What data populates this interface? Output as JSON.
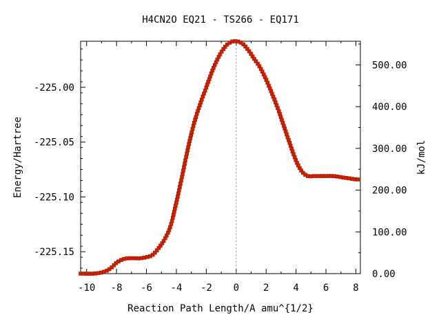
{
  "chart_data": {
    "type": "scatter",
    "title": "H4CN2O   EQ21 - TS266 - EQ171",
    "xlabel": "Reaction Path Length/A amu^{1/2}",
    "ylabel": "Energy/Hartree",
    "y2label": "kJ/mol",
    "xlim": [
      -10.4,
      8.3
    ],
    "ylim": [
      -225.17,
      -224.958
    ],
    "y2lim": [
      0,
      556.6
    ],
    "grid": false,
    "legend": "none",
    "xticks": [
      -10,
      -8,
      -6,
      -4,
      -2,
      0,
      2,
      4,
      6,
      8
    ],
    "xtick_labels": [
      "-10",
      "-8",
      "-6",
      "-4",
      "-2",
      "0",
      "2",
      "4",
      "6",
      "8"
    ],
    "yticks": [
      -225.0,
      -225.05,
      -225.1,
      -225.15
    ],
    "ytick_labels": [
      "-225.00",
      "-225.05",
      "-225.10",
      "-225.15"
    ],
    "y2ticks": [
      0,
      100,
      200,
      300,
      400,
      500
    ],
    "y2tick_labels": [
      "0.00",
      "100.00",
      "200.00",
      "300.00",
      "400.00",
      "500.00"
    ],
    "ts_x": 0,
    "colors": {
      "line": "#00aa00",
      "marker": "#cc2200",
      "marker_edge": "#aa1100",
      "ts_line": "#888888"
    },
    "curve": {
      "x": [
        -10.4,
        -9.5,
        -9.0,
        -8.6,
        -8.3,
        -8.0,
        -7.6,
        -7.2,
        -6.8,
        -6.4,
        -6.0,
        -5.6,
        -5.2,
        -4.8,
        -4.4,
        -4.0,
        -3.6,
        -3.2,
        -2.8,
        -2.4,
        -2.0,
        -1.6,
        -1.2,
        -0.8,
        -0.4,
        0.0,
        0.4,
        0.8,
        1.2,
        1.6,
        2.0,
        2.4,
        2.8,
        3.2,
        3.6,
        4.0,
        4.4,
        4.8,
        5.2,
        5.6,
        6.0,
        6.5,
        7.0,
        7.5,
        8.0,
        8.3
      ],
      "y": [
        -225.17,
        -225.17,
        -225.169,
        -225.167,
        -225.164,
        -225.16,
        -225.157,
        -225.156,
        -225.156,
        -225.156,
        -225.155,
        -225.153,
        -225.147,
        -225.139,
        -225.127,
        -225.105,
        -225.08,
        -225.054,
        -225.032,
        -225.015,
        -225.0,
        -224.985,
        -224.973,
        -224.964,
        -224.959,
        -224.958,
        -224.96,
        -224.966,
        -224.974,
        -224.982,
        -224.993,
        -225.006,
        -225.02,
        -225.036,
        -225.052,
        -225.067,
        -225.077,
        -225.081,
        -225.081,
        -225.081,
        -225.081,
        -225.081,
        -225.082,
        -225.083,
        -225.084,
        -225.084
      ]
    }
  }
}
